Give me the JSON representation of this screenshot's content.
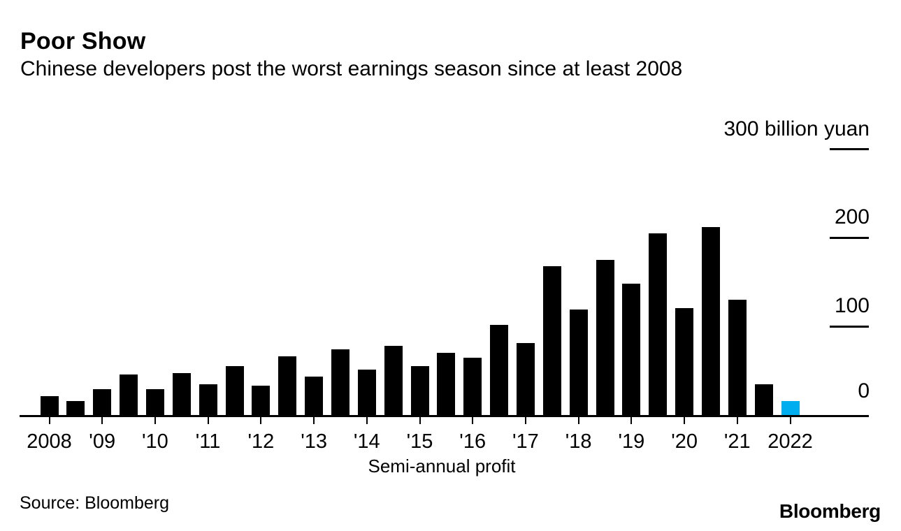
{
  "header": {
    "title": "Poor Show",
    "subtitle": "Chinese developers post the worst earnings season since at least 2008"
  },
  "chart_data": {
    "type": "bar",
    "title": "Poor Show",
    "subtitle": "Chinese developers post the worst earnings season since at least 2008",
    "xlabel": "Semi-annual profit",
    "ylabel": "billion yuan",
    "ylim": [
      0,
      300
    ],
    "grid": false,
    "legend_position": "none",
    "y_ticks": [
      {
        "value": 300,
        "label": "300 billion yuan",
        "tick_line": true
      },
      {
        "value": 200,
        "label": "200",
        "tick_line": true
      },
      {
        "value": 100,
        "label": "100",
        "tick_line": true
      },
      {
        "value": 0,
        "label": "0",
        "tick_line": false
      }
    ],
    "x_tick_labels": [
      "2008",
      "'09",
      "'10",
      "'11",
      "'12",
      "'13",
      "'14",
      "'15",
      "'16",
      "'17",
      "'18",
      "'19",
      "'20",
      "'21",
      "2022"
    ],
    "points_per_year": 2,
    "periods": [
      "2008 H1",
      "2008 H2",
      "2009 H1",
      "2009 H2",
      "2010 H1",
      "2010 H2",
      "2011 H1",
      "2011 H2",
      "2012 H1",
      "2012 H2",
      "2013 H1",
      "2013 H2",
      "2014 H1",
      "2014 H2",
      "2015 H1",
      "2015 H2",
      "2016 H1",
      "2016 H2",
      "2017 H1",
      "2017 H2",
      "2018 H1",
      "2018 H2",
      "2019 H1",
      "2019 H2",
      "2020 H1",
      "2020 H2",
      "2021 H1",
      "2021 H2",
      "2022 H1"
    ],
    "values": [
      21,
      16,
      29,
      46,
      29,
      47,
      35,
      55,
      33,
      66,
      43,
      74,
      51,
      78,
      55,
      70,
      65,
      102,
      81,
      168,
      119,
      175,
      148,
      205,
      121,
      212,
      130,
      35,
      16
    ],
    "bar_color": "#000000",
    "highlight_index": 28,
    "highlight_color": "#00aeef"
  },
  "footer": {
    "source": "Source: Bloomberg",
    "brand": "Bloomberg"
  }
}
